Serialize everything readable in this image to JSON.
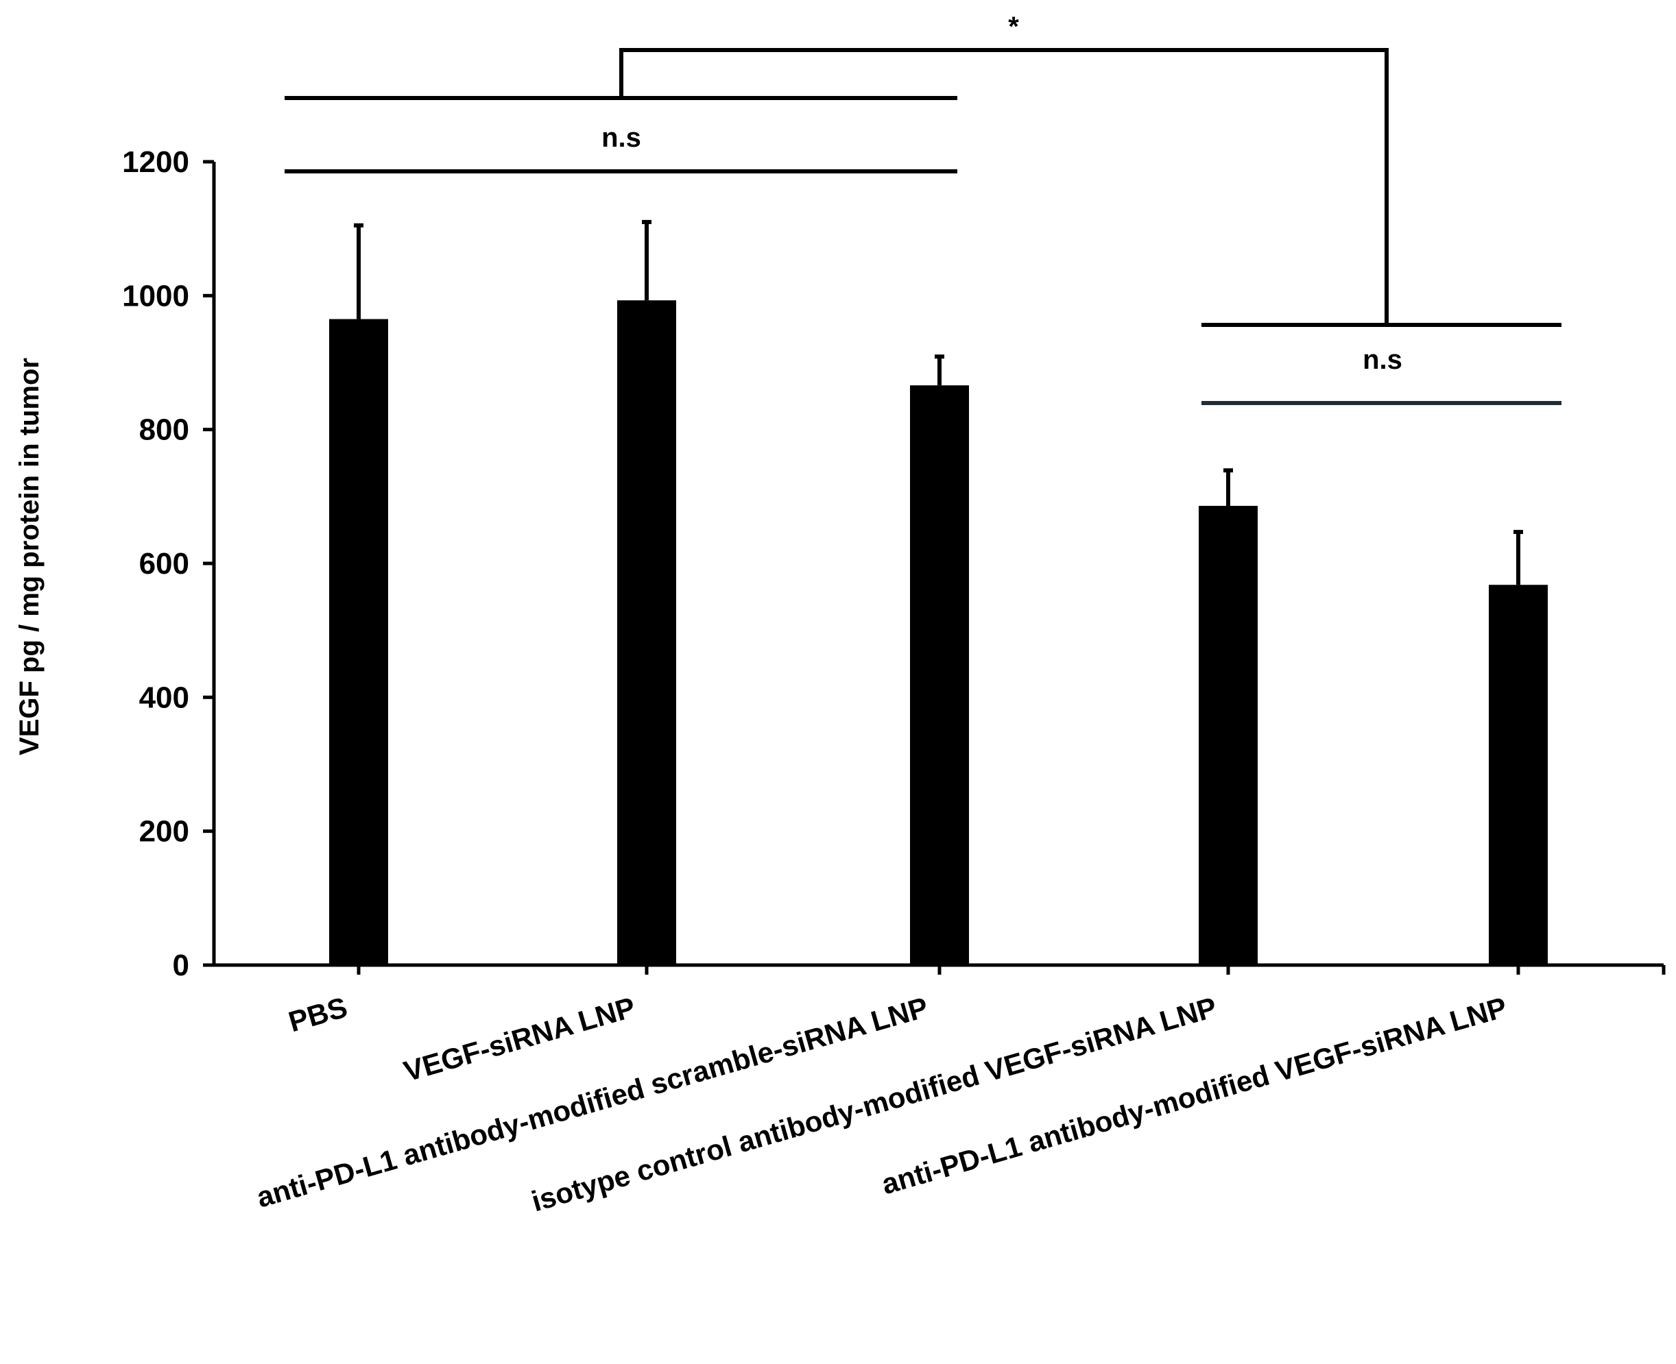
{
  "chart_data": {
    "type": "bar",
    "title": "",
    "xlabel": "",
    "ylabel": "VEGF pg / mg protein in tumor",
    "ylim": [
      0,
      1200
    ],
    "yticks": [
      0,
      200,
      400,
      600,
      800,
      1000,
      1200
    ],
    "grid": false,
    "legend": "none",
    "bar_color": "#000000",
    "categories": [
      "PBS",
      "VEGF-siRNA LNP",
      "anti-PD-L1 antibody-modified scramble-siRNA LNP",
      "isotype control antibody-modified VEGF-siRNA LNP",
      "anti-PD-L1 antibody-modified VEGF-siRNA LNP"
    ],
    "values": [
      965,
      993,
      866,
      686,
      568
    ],
    "error_upper": [
      140,
      117,
      43,
      53,
      79
    ],
    "annotations": {
      "ns_group1": "n.s",
      "ns_group2": "n.s",
      "significance": "*"
    }
  }
}
